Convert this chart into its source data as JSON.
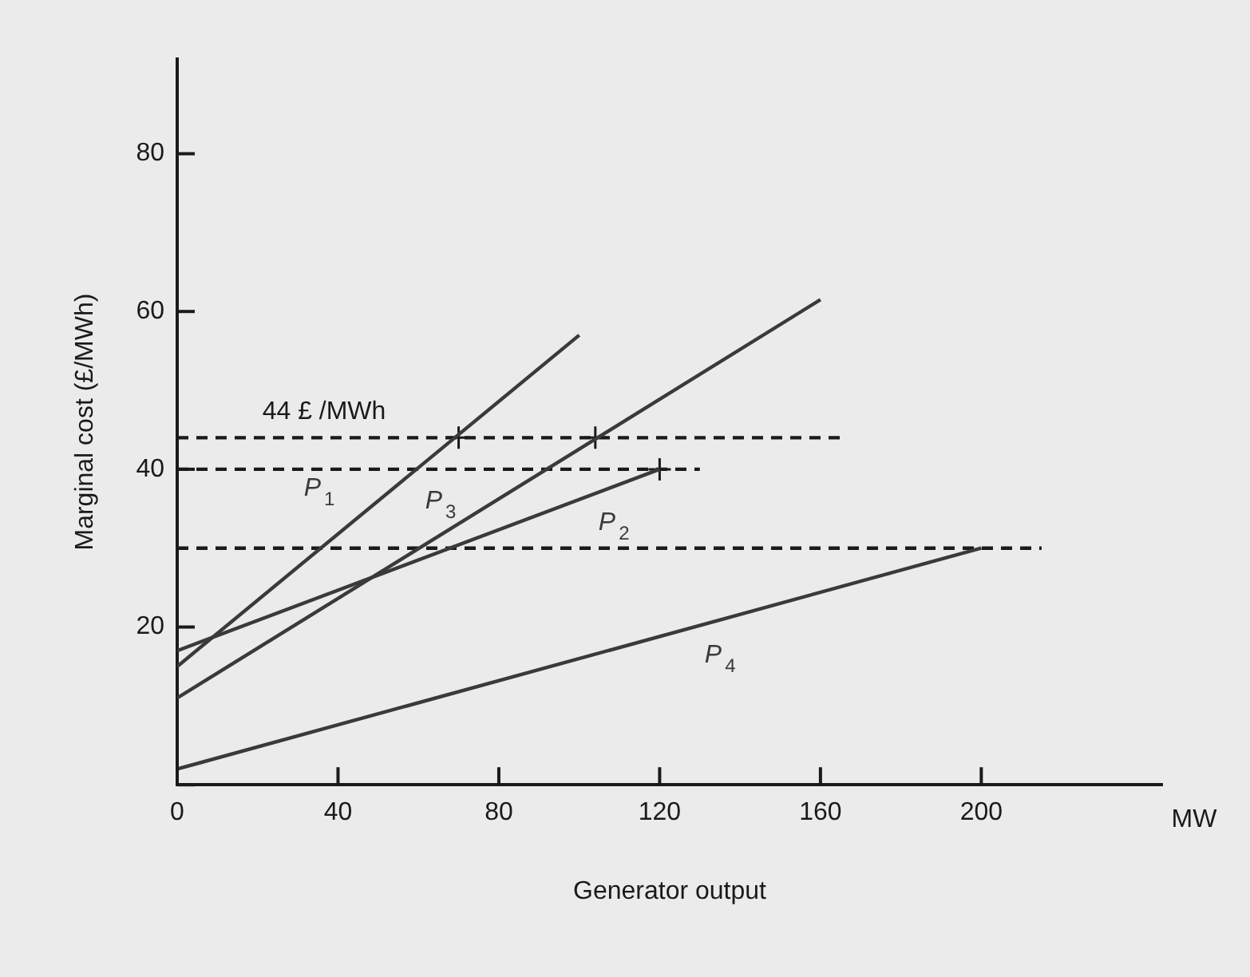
{
  "chart_data": {
    "type": "line",
    "xlabel": "Generator output",
    "ylabel": "Marginal cost (£/MWh)",
    "xlim": [
      0,
      245
    ],
    "ylim": [
      0,
      92
    ],
    "xticks": [
      0,
      40,
      80,
      120,
      160,
      200
    ],
    "yticks": [
      {
        "value": 0,
        "label": null
      },
      20,
      40,
      60,
      80
    ],
    "grid": false,
    "legend": false,
    "marker": "none",
    "series": [
      {
        "name": "P$_{1}$",
        "color": "#3a3a3a",
        "x": [
          0,
          100
        ],
        "values": [
          15,
          57
        ]
      },
      {
        "name": "P$_{2}$",
        "color": "#3a3a3a",
        "x": [
          0,
          120
        ],
        "values": [
          17,
          40
        ]
      },
      {
        "name": "P$_{3}$",
        "color": "#3a3a3a",
        "x": [
          0,
          160
        ],
        "values": [
          11,
          61.5
        ]
      },
      {
        "name": "P$_{4}$",
        "color": "#3a3a3a",
        "x": [
          0,
          200
        ],
        "values": [
          2,
          30
        ]
      },
      {
        "color": "#1a1a1a",
        "x": [
          0,
          165
        ],
        "values": [
          44,
          44
        ],
        "line_style": "dashed"
      },
      {
        "color": "#1a1a1a",
        "x": [
          0,
          130
        ],
        "values": [
          40,
          40
        ],
        "line_style": "dashed"
      },
      {
        "color": "#1a1a1a",
        "x": [
          0,
          215
        ],
        "values": [
          30,
          30
        ],
        "line_style": "dashed"
      },
      {
        "type": "scatter",
        "marker": "cross",
        "color": "#1a1a1a",
        "x": [
          70,
          104,
          120
        ],
        "values": [
          44,
          44,
          40
        ]
      }
    ],
    "annotations": [
      "44 £ /MWh",
      "MW"
    ]
  }
}
